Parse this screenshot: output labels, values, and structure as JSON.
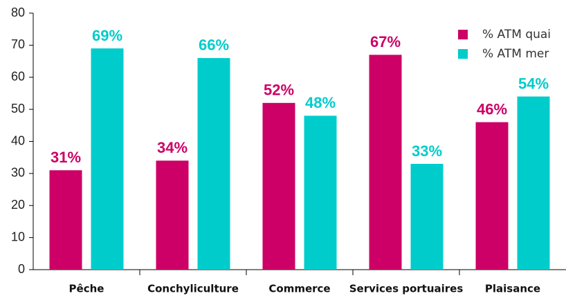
{
  "chart_data": {
    "type": "bar",
    "categories": [
      "Pêche",
      "Conchyliculture",
      "Commerce",
      "Services portuaires",
      "Plaisance"
    ],
    "series": [
      {
        "name": "% ATM quai",
        "color": "#cc0066",
        "values": [
          31,
          34,
          52,
          67,
          46
        ],
        "value_labels": [
          "31%",
          "34%",
          "52%",
          "67%",
          "46%"
        ]
      },
      {
        "name": "% ATM mer",
        "color": "#00cccc",
        "values": [
          69,
          66,
          48,
          33,
          54
        ],
        "value_labels": [
          "69%",
          "66%",
          "48%",
          "33%",
          "54%"
        ]
      }
    ],
    "ylim": [
      0,
      80
    ],
    "yticks": [
      0,
      10,
      20,
      30,
      40,
      50,
      60,
      70,
      80
    ],
    "grid": false,
    "legend": "top-right"
  }
}
